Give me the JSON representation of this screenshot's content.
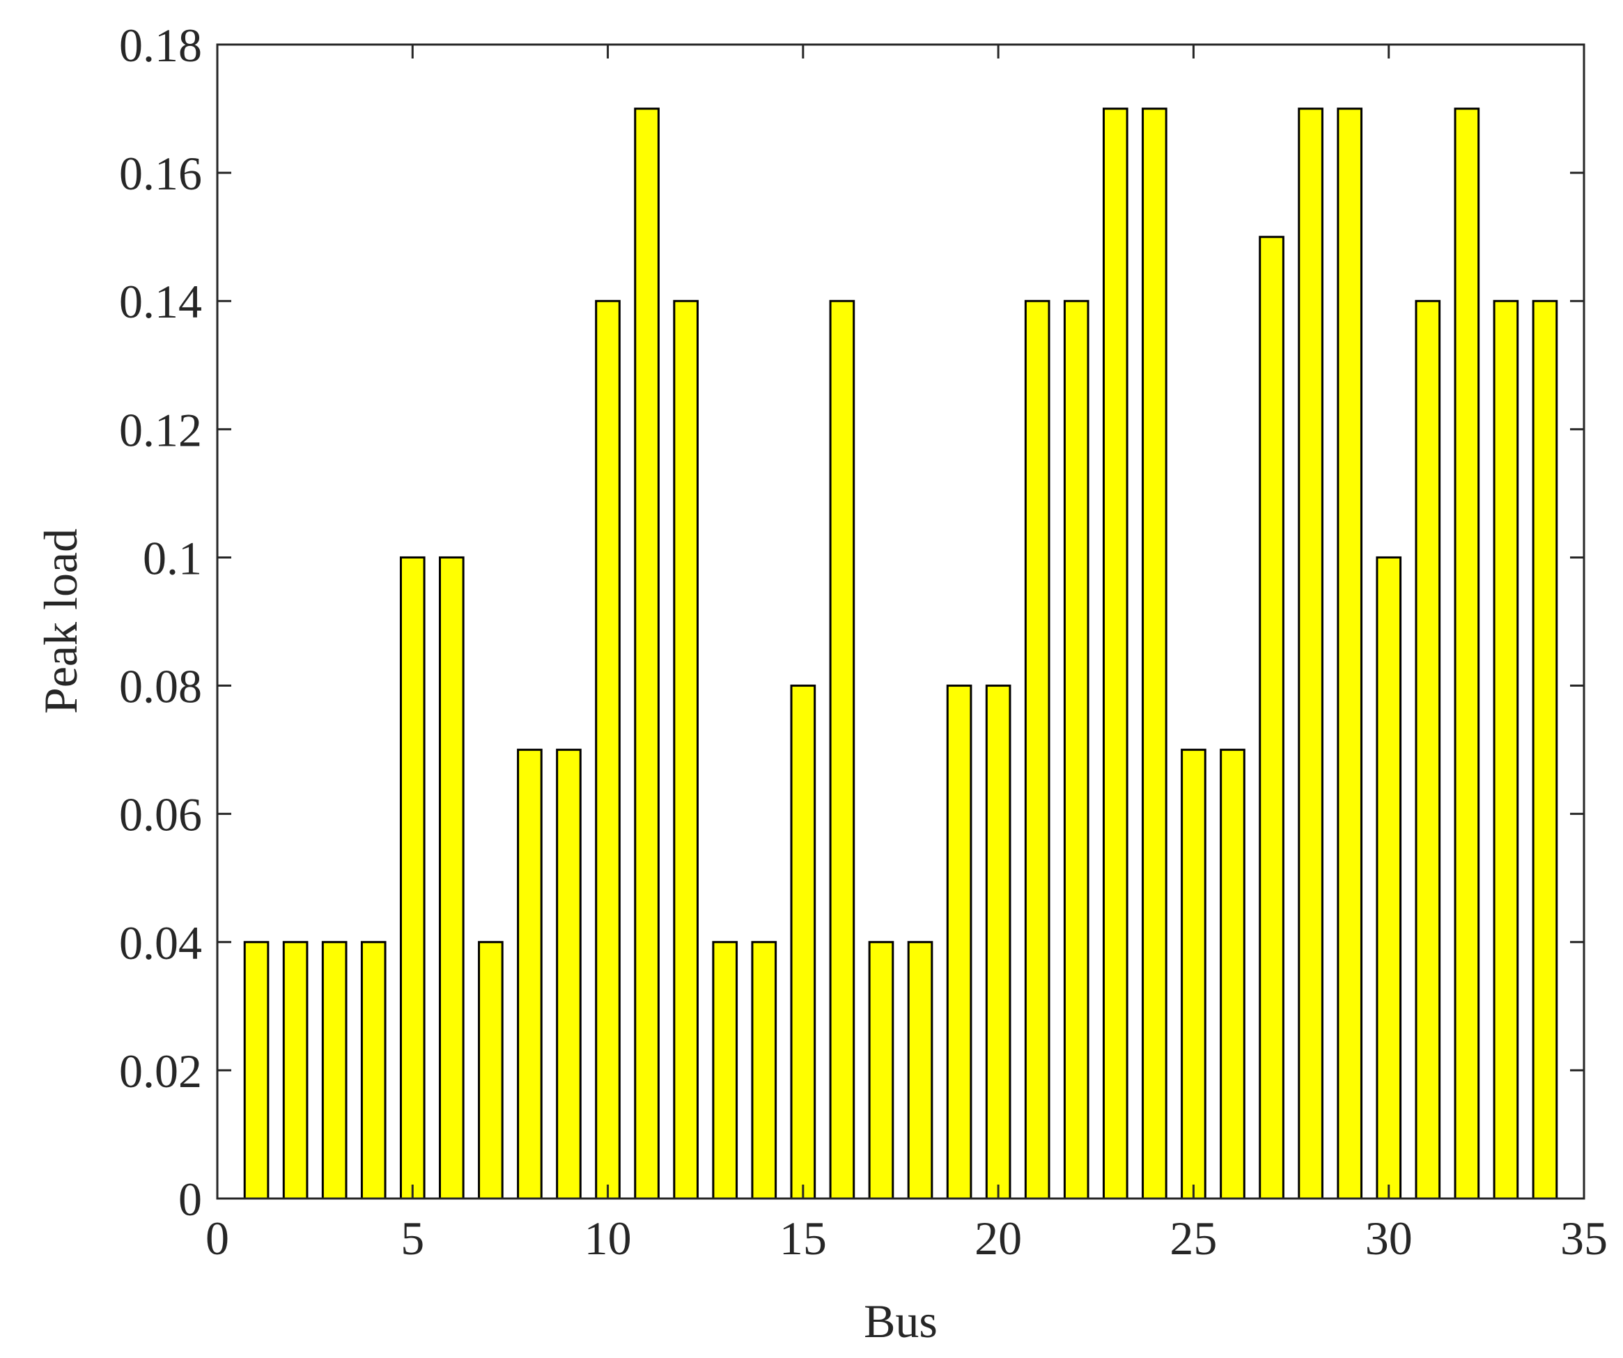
{
  "chart_data": {
    "type": "bar",
    "x_label": "Bus",
    "y_label": "Peak load",
    "x": [
      1,
      2,
      3,
      4,
      5,
      6,
      7,
      8,
      9,
      10,
      11,
      12,
      13,
      14,
      15,
      16,
      17,
      18,
      19,
      20,
      21,
      22,
      23,
      24,
      25,
      26,
      27,
      28,
      29,
      30,
      31,
      32,
      33,
      34
    ],
    "values": [
      0.04,
      0.04,
      0.04,
      0.04,
      0.1,
      0.1,
      0.04,
      0.07,
      0.07,
      0.14,
      0.17,
      0.14,
      0.04,
      0.04,
      0.08,
      0.14,
      0.04,
      0.04,
      0.08,
      0.08,
      0.14,
      0.14,
      0.17,
      0.17,
      0.07,
      0.07,
      0.15,
      0.17,
      0.17,
      0.1,
      0.14,
      0.17,
      0.14,
      0.14
    ],
    "color": "#ffff00",
    "xlim": [
      0,
      35
    ],
    "xticks": [
      0,
      5,
      10,
      15,
      20,
      25,
      30,
      35
    ],
    "ylim": [
      0,
      0.18
    ],
    "yticks": [
      0,
      0.02,
      0.04,
      0.06,
      0.08,
      0.1,
      0.12,
      0.14,
      0.16,
      0.18
    ],
    "grid": false
  }
}
